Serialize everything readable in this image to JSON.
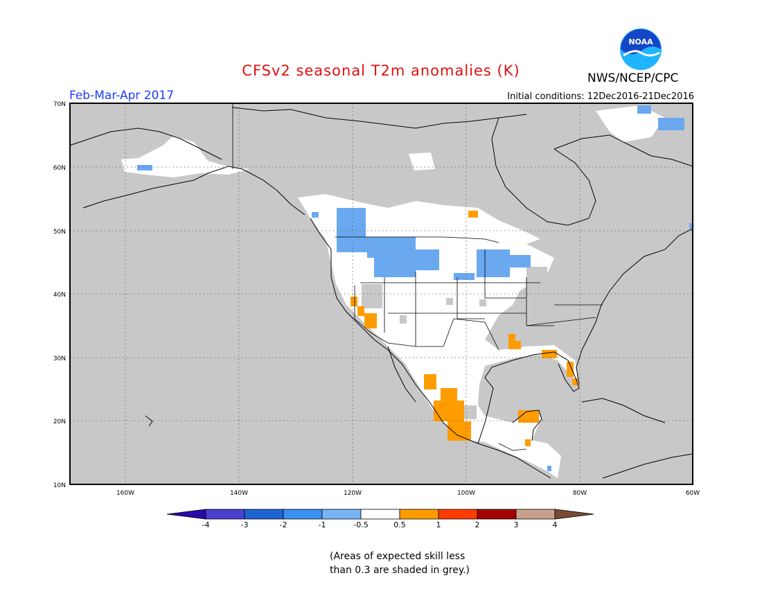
{
  "title": "CFSv2 seasonal T2m anomalies (K)",
  "period": "Feb-Mar-Apr 2017",
  "agency": "NWS/NCEP/CPC",
  "logo_text": "NOAA",
  "initial_conditions": "Initial conditions: 12Dec2016-21Dec2016",
  "lat_labels": [
    "70N",
    "60N",
    "50N",
    "40N",
    "30N",
    "20N",
    "10N"
  ],
  "lon_labels": [
    "160W",
    "140W",
    "120W",
    "100W",
    "80W",
    "60W"
  ],
  "colorbar": {
    "ticks": [
      "-4",
      "-3",
      "-2",
      "-1",
      "-0.5",
      "0.5",
      "1",
      "2",
      "3",
      "4"
    ],
    "colors": [
      "#2a0aa8",
      "#4a3ed0",
      "#1e64d2",
      "#3c90f0",
      "#78b4f4",
      "#ffffff",
      "#ff9c00",
      "#ff3c00",
      "#a50000",
      "#c8a08c",
      "#7a4a36"
    ]
  },
  "note_line1": "(Areas of expected skill less",
  "note_line2": "than 0.3 are shaded in grey.)",
  "colors": {
    "skill_grey": "#c8c8c8",
    "land_white": "#ffffff",
    "cold": "#6aa8f0",
    "warm": "#ff9c00"
  }
}
